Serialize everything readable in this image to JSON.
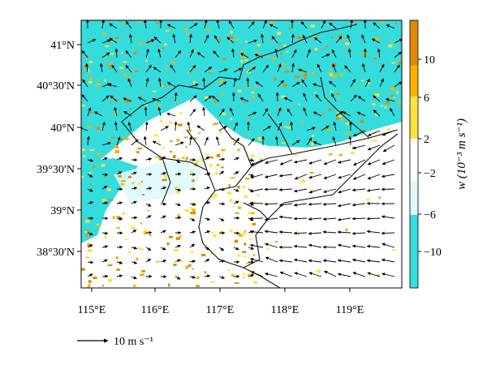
{
  "map": {
    "lon_labels": [
      "115°E",
      "116°E",
      "117°E",
      "118°E",
      "119°E"
    ],
    "lat_labels": [
      "41°N",
      "40°30′N",
      "40°N",
      "39°30′N",
      "39°N",
      "38°30′N"
    ]
  },
  "colorbar": {
    "title": "w (10⁻³ m s⁻¹)",
    "tick_labels": [
      "10",
      "6",
      "2",
      "−2",
      "−6",
      "−10"
    ],
    "colors": [
      "#e08a00",
      "#f6b300",
      "#ffe23a",
      "#ffffff",
      "#dff9fb",
      "#35dcdc"
    ]
  },
  "reference_vector": {
    "label": "10 m s⁻¹"
  }
}
